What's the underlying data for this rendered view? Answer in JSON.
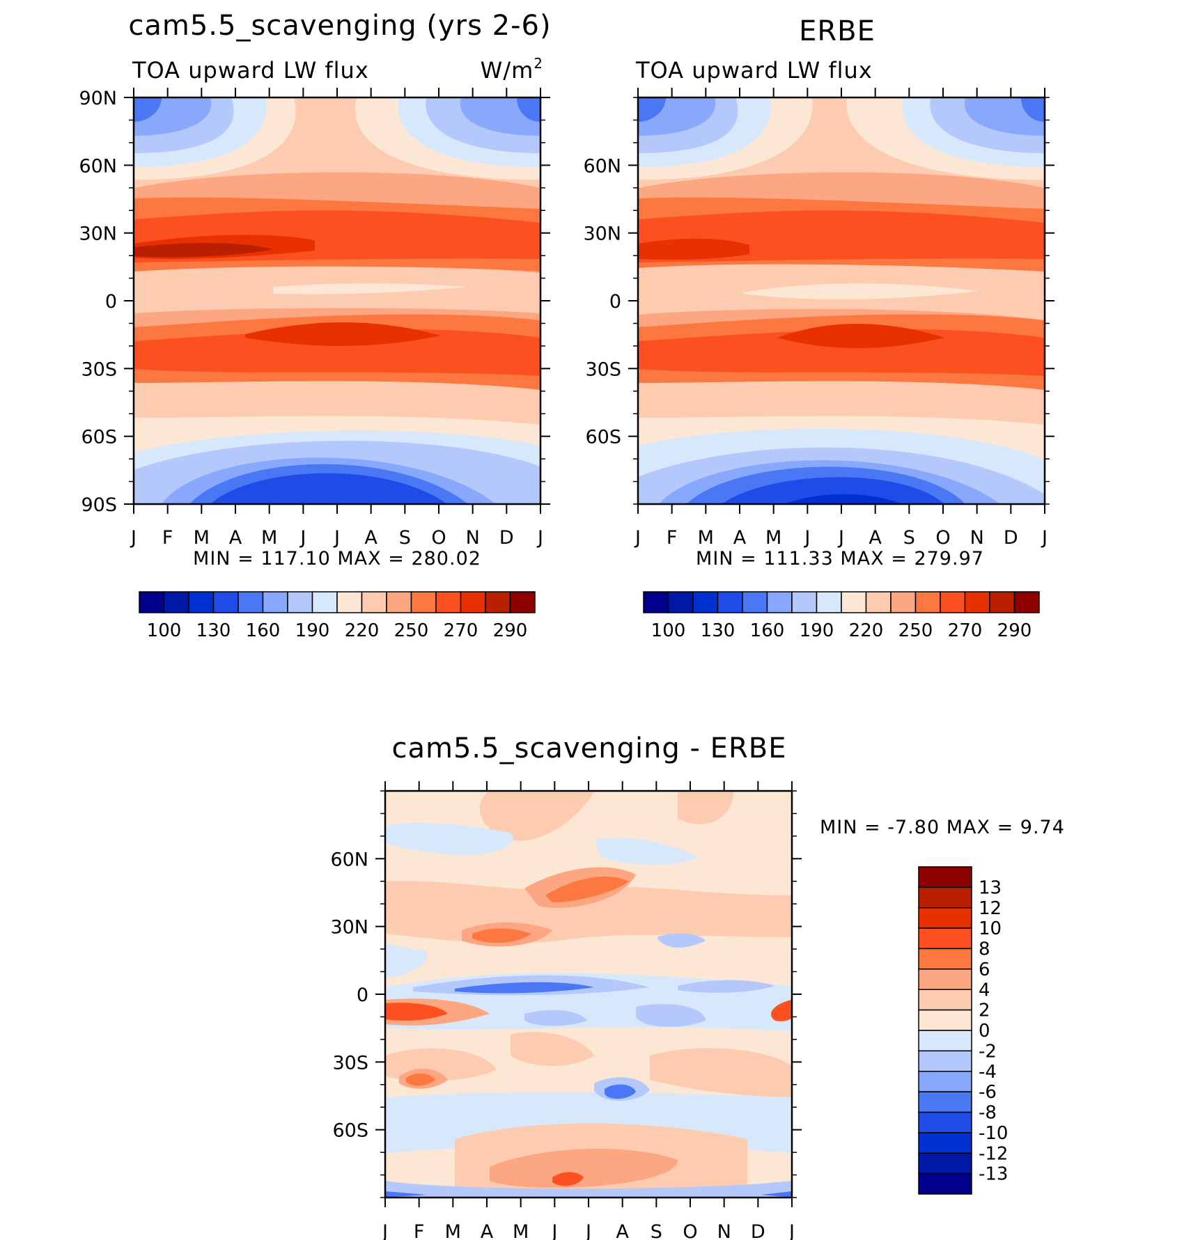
{
  "months": [
    "J",
    "F",
    "M",
    "A",
    "M",
    "J",
    "J",
    "A",
    "S",
    "O",
    "N",
    "D",
    "J"
  ],
  "panels": [
    {
      "id": "model",
      "title": "cam5.5_scavenging (yrs 2-6)",
      "left_label": "TOA upward LW flux",
      "right_label": "W/m",
      "right_label_sup": "2",
      "lat_labels": [
        "90N",
        "60N",
        "30N",
        "0",
        "30S",
        "60S",
        "90S"
      ],
      "lat_values": [
        90,
        60,
        30,
        0,
        -30,
        -60,
        -90
      ],
      "stats": {
        "min_label": "MIN",
        "min": "117.10",
        "max_label": "MAX",
        "max": "280.02"
      },
      "colorbar": {
        "colors": [
          "#00008c",
          "#0018a8",
          "#0030d0",
          "#1f4be8",
          "#4a78f4",
          "#88a8fc",
          "#b4c8fc",
          "#d8e8fc",
          "#fce6d4",
          "#fccbb0",
          "#fca682",
          "#fc7840",
          "#fc5020",
          "#e83000",
          "#b82000",
          "#8c0000"
        ],
        "labels": [
          "100",
          "130",
          "160",
          "190",
          "220",
          "250",
          "270",
          "290"
        ]
      }
    },
    {
      "id": "obs",
      "title": "ERBE",
      "left_label": "TOA upward LW flux",
      "lat_labels": [
        "60N",
        "30N",
        "0",
        "30S",
        "60S"
      ],
      "lat_values": [
        60,
        30,
        0,
        -30,
        -60
      ],
      "stats": {
        "min_label": "MIN",
        "min": "111.33",
        "max_label": "MAX",
        "max": "279.97"
      },
      "colorbar": {
        "colors": [
          "#00008c",
          "#0018a8",
          "#0030d0",
          "#1f4be8",
          "#4a78f4",
          "#88a8fc",
          "#b4c8fc",
          "#d8e8fc",
          "#fce6d4",
          "#fccbb0",
          "#fca682",
          "#fc7840",
          "#fc5020",
          "#e83000",
          "#b82000",
          "#8c0000"
        ],
        "labels": [
          "100",
          "130",
          "160",
          "190",
          "220",
          "250",
          "270",
          "290"
        ]
      }
    },
    {
      "id": "diff",
      "title": "cam5.5_scavenging - ERBE",
      "lat_labels": [
        "60N",
        "30N",
        "0",
        "30S",
        "60S"
      ],
      "lat_values": [
        60,
        30,
        0,
        -30,
        -60
      ],
      "stats": {
        "min_label": "MIN",
        "min": "-7.80",
        "max_label": "MAX",
        "max": "9.74"
      },
      "colorbar": {
        "colors": [
          "#8c0000",
          "#b82000",
          "#e83000",
          "#fc5020",
          "#fc7840",
          "#fca682",
          "#fccbb0",
          "#fce6d4",
          "#d8e8fc",
          "#b4c8fc",
          "#88a8fc",
          "#4a78f4",
          "#1f4be8",
          "#0030d0",
          "#0018a8",
          "#00008c"
        ],
        "labels": [
          "13",
          "12",
          "10",
          "8",
          "6",
          "4",
          "2",
          "0",
          "-2",
          "-4",
          "-6",
          "-8",
          "-10",
          "-12",
          "-13"
        ]
      }
    }
  ],
  "chart_data": [
    {
      "type": "heatmap",
      "title": "cam5.5_scavenging (yrs 2-6)",
      "subtitle_left": "TOA upward LW flux",
      "units": "W/m2",
      "x": [
        "J",
        "F",
        "M",
        "A",
        "M",
        "J",
        "J",
        "A",
        "S",
        "O",
        "N",
        "D",
        "J"
      ],
      "y_range": [
        -90,
        90
      ],
      "contour_levels": [
        100,
        110,
        120,
        130,
        140,
        150,
        160,
        170,
        180,
        190,
        200,
        210,
        220,
        230,
        240,
        250,
        260,
        270,
        280,
        290
      ],
      "min": 117.1,
      "max": 280.02
    },
    {
      "type": "heatmap",
      "title": "ERBE",
      "subtitle_left": "TOA upward LW flux",
      "x": [
        "J",
        "F",
        "M",
        "A",
        "M",
        "J",
        "J",
        "A",
        "S",
        "O",
        "N",
        "D",
        "J"
      ],
      "y_range": [
        -90,
        90
      ],
      "min": 111.33,
      "max": 279.97
    },
    {
      "type": "heatmap",
      "title": "cam5.5_scavenging - ERBE",
      "x": [
        "J",
        "F",
        "M",
        "A",
        "M",
        "J",
        "J",
        "A",
        "S",
        "O",
        "N",
        "D",
        "J"
      ],
      "y_range": [
        -90,
        90
      ],
      "contour_levels": [
        -13,
        -12,
        -10,
        -8,
        -6,
        -4,
        -2,
        0,
        2,
        4,
        6,
        8,
        10,
        12,
        13
      ],
      "min": -7.8,
      "max": 9.74
    }
  ]
}
